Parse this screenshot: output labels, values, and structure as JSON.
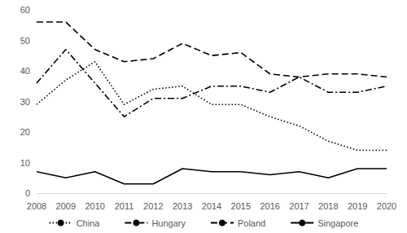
{
  "chart_data": {
    "type": "line",
    "categories": [
      "2008",
      "2009",
      "2010",
      "2011",
      "2012",
      "2013",
      "2014",
      "2015",
      "2016",
      "2017",
      "2018",
      "2019",
      "2020"
    ],
    "series": [
      {
        "name": "China",
        "color": "#000000",
        "line_style": "dotted",
        "values": [
          29,
          37,
          43,
          29,
          34,
          35,
          29,
          29,
          25,
          22,
          17,
          14,
          14
        ]
      },
      {
        "name": "Hungary",
        "color": "#000000",
        "line_style": "dashdot",
        "values": [
          36,
          47,
          36,
          25,
          31,
          31,
          35,
          35,
          33,
          38,
          33,
          33,
          35
        ]
      },
      {
        "name": "Poland",
        "color": "#000000",
        "line_style": "dashed",
        "values": [
          56,
          56,
          47,
          43,
          44,
          49,
          45,
          46,
          39,
          38,
          39,
          39,
          38
        ]
      },
      {
        "name": "Singapore",
        "color": "#000000",
        "line_style": "solid",
        "values": [
          7,
          5,
          7,
          3,
          3,
          8,
          7,
          7,
          6,
          7,
          5,
          8,
          8
        ]
      }
    ],
    "ylim": [
      0,
      60
    ],
    "yticks": [
      0,
      10,
      20,
      30,
      40,
      50,
      60
    ],
    "grid": false,
    "legend": "bottom",
    "marker": "none"
  }
}
